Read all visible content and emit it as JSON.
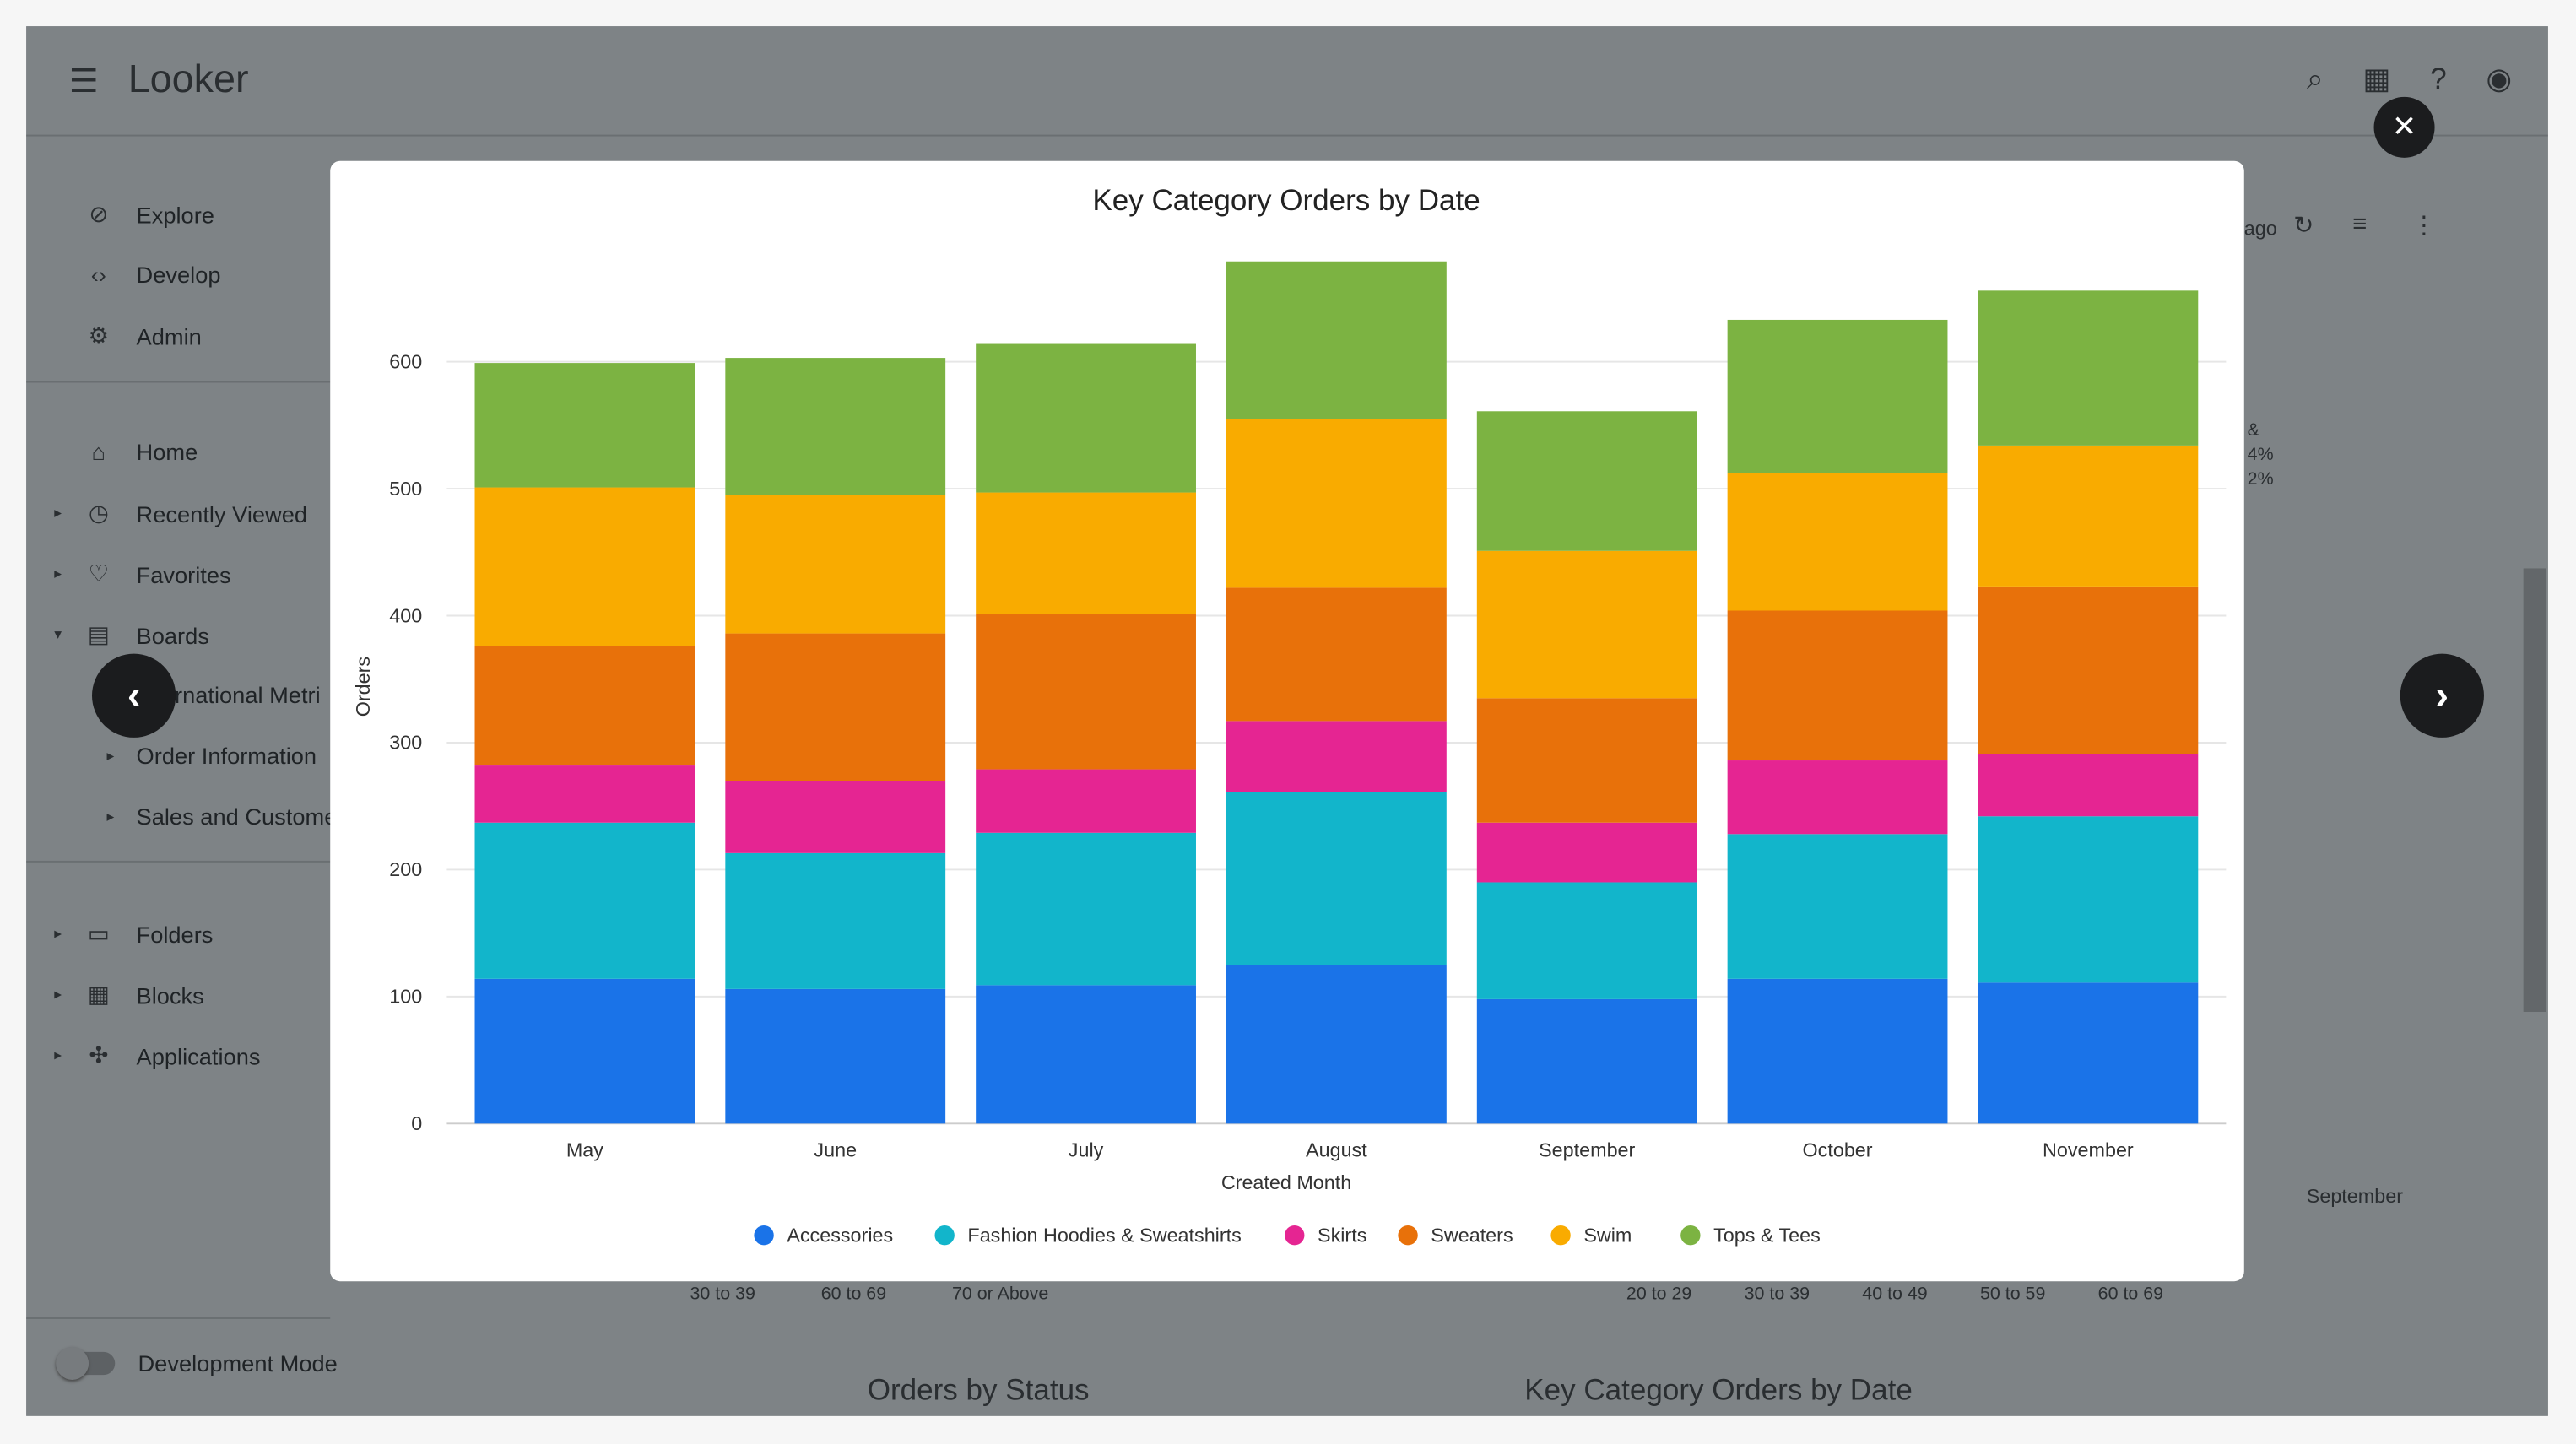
{
  "app": {
    "logo": "Looker"
  },
  "sidebar": {
    "items": [
      {
        "label": "Explore",
        "icon": "compass-icon"
      },
      {
        "label": "Develop",
        "icon": "code-icon"
      },
      {
        "label": "Admin",
        "icon": "admin-icon"
      },
      {
        "label": "Home",
        "icon": "home-icon"
      },
      {
        "label": "Recently Viewed",
        "icon": "clock-icon"
      },
      {
        "label": "Favorites",
        "icon": "heart-icon"
      },
      {
        "label": "Boards",
        "icon": "board-icon"
      },
      {
        "label": "International Metri"
      },
      {
        "label": "Order Information"
      },
      {
        "label": "Sales and Custome"
      },
      {
        "label": "Folders",
        "icon": "folder-icon"
      },
      {
        "label": "Blocks",
        "icon": "blocks-icon"
      },
      {
        "label": "Applications",
        "icon": "applications-icon"
      }
    ],
    "dev_mode": "Development Mode"
  },
  "background": {
    "ago": "ago",
    "pct1": "&",
    "pct2": "4%",
    "pct3": "2%",
    "september": "September",
    "legend_left": [
      "30 to 39",
      "60 to 69",
      "70 or Above"
    ],
    "legend_right": [
      "20 to 29",
      "30 to 39",
      "40 to 49",
      "50 to 59",
      "60 to 69"
    ],
    "tile1": "Orders by Status",
    "tile2": "Key Category Orders by Date"
  },
  "chart_data": {
    "type": "bar",
    "stacked": true,
    "title": "Key Category Orders by Date",
    "xlabel": "Created Month",
    "ylabel": "Orders",
    "categories": [
      "May",
      "June",
      "July",
      "August",
      "September",
      "October",
      "November"
    ],
    "ylim": [
      0,
      700
    ],
    "yticks": [
      0,
      100,
      200,
      300,
      400,
      500,
      600
    ],
    "grid": true,
    "legend": "bottom",
    "series": [
      {
        "name": "Accessories",
        "color": "#1a73e8",
        "values": [
          114,
          106,
          109,
          125,
          98,
          114,
          111
        ]
      },
      {
        "name": "Fashion Hoodies & Sweatshirts",
        "color": "#12b5cb",
        "values": [
          123,
          107,
          120,
          136,
          92,
          114,
          131
        ]
      },
      {
        "name": "Skirts",
        "color": "#e52592",
        "values": [
          45,
          57,
          50,
          56,
          47,
          58,
          49
        ]
      },
      {
        "name": "Sweaters",
        "color": "#e8710a",
        "values": [
          94,
          116,
          122,
          105,
          98,
          118,
          132
        ]
      },
      {
        "name": "Swim",
        "color": "#f9ab00",
        "values": [
          125,
          109,
          96,
          133,
          116,
          108,
          111
        ]
      },
      {
        "name": "Tops & Tees",
        "color": "#7cb342",
        "values": [
          98,
          108,
          117,
          124,
          110,
          121,
          122
        ]
      }
    ]
  }
}
